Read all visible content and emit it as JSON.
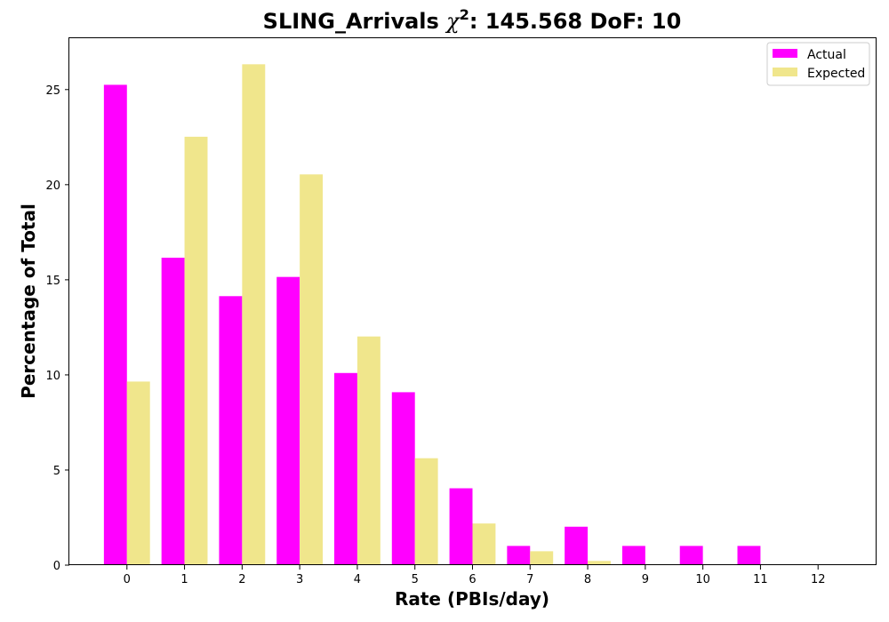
{
  "chart_data": {
    "type": "bar",
    "title": {
      "prefix": "SLING_Arrivals ",
      "chi_symbol": "χ",
      "chi_exponent": "2",
      "suffix": ": 145.568 DoF: 10"
    },
    "xlabel": "Rate (PBIs/day)",
    "ylabel": "Percentage of Total",
    "categories": [
      "0",
      "1",
      "2",
      "3",
      "4",
      "5",
      "6",
      "7",
      "8",
      "9",
      "10",
      "11",
      "12"
    ],
    "y_ticks": [
      "0",
      "5",
      "10",
      "15",
      "20",
      "25"
    ],
    "ylim": [
      0,
      27.7
    ],
    "xlim": [
      -1,
      13
    ],
    "bar_width": 0.4,
    "series": [
      {
        "name": "Actual",
        "color": "#ff00ff",
        "offset": -0.2,
        "values": [
          25.25,
          16.16,
          14.14,
          15.15,
          10.1,
          9.09,
          4.04,
          1.01,
          2.02,
          1.01,
          1.01,
          1.01,
          0
        ]
      },
      {
        "name": "Expected",
        "color": "#f0e68c",
        "offset": 0.2,
        "values": [
          9.65,
          22.52,
          26.33,
          20.54,
          12.02,
          5.62,
          2.19,
          0.73,
          0.22,
          0.05,
          0.02,
          0.0,
          0.0
        ]
      }
    ],
    "legend_position": "top-right",
    "grid": false
  }
}
